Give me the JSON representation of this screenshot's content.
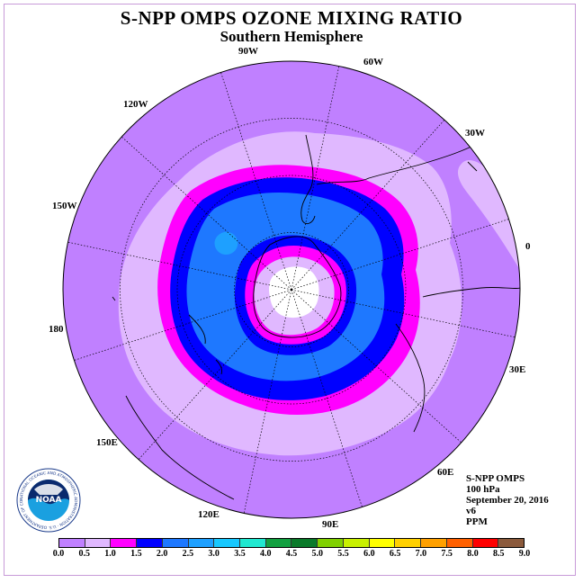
{
  "header": {
    "title": "S-NPP OMPS OZONE MIXING RATIO",
    "subtitle": "Southern Hemisphere"
  },
  "longitude_labels": [
    "90W",
    "60W",
    "30W",
    "0",
    "30E",
    "60E",
    "90E",
    "120E",
    "150E",
    "180",
    "150W",
    "120W"
  ],
  "info": {
    "instrument": "S-NPP OMPS",
    "level": "100 hPa",
    "date": "September 20, 2016",
    "version": "v6",
    "units": "PPM"
  },
  "logo": {
    "text": "NOAA",
    "ring_text": "NATIONAL OCEANIC AND ATMOSPHERIC ADMINISTRATION · U.S. DEPARTMENT OF COMMERCE"
  },
  "colorbar": {
    "ticks": [
      "0.0",
      "0.5",
      "1.0",
      "1.5",
      "2.0",
      "2.5",
      "3.0",
      "3.5",
      "4.0",
      "4.5",
      "5.0",
      "5.5",
      "6.0",
      "6.5",
      "7.0",
      "7.5",
      "8.0",
      "8.5",
      "9.0"
    ],
    "colors": [
      "#c080ff",
      "#e0b8ff",
      "#ff00ff",
      "#0000ff",
      "#1e78ff",
      "#1ea0ff",
      "#18c8ff",
      "#20e8d0",
      "#12a040",
      "#0a7a2a",
      "#80d000",
      "#c8f000",
      "#ffff00",
      "#ffd000",
      "#ffa000",
      "#ff6000",
      "#ff0000",
      "#8b5a3c"
    ]
  },
  "map_colors": {
    "background": "#c080ff",
    "level_0_5": "#e0b8ff",
    "level_1_0": "#ff00ff",
    "level_1_5": "#0000ff",
    "level_2_0": "#1e78ff",
    "level_2_5": "#1ea0ff",
    "center": "#ffffff"
  }
}
